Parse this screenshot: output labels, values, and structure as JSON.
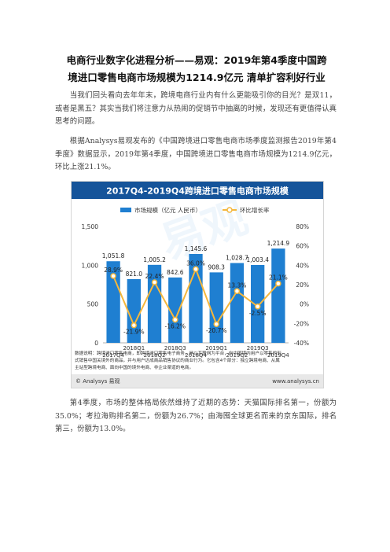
{
  "article": {
    "title_line1": "电商行业数字化进程分析——易观：2019年第4季度中国跨",
    "title_line2": "境进口零售电商市场规模为1214.9亿元 清单扩容利好行业",
    "paragraph1": "当我们回头看向去年年末，跨境电商行业内有什么更能吸引你的目光？是双11，或者是黑五？其实当我们将注意力从热闹的促销节中抽离的时候，发现还有更值得认真思考的问题。",
    "paragraph2": "根据Analysys易观发布的《中国跨境进口零售电商市场季度监测报告2019年第4季度》数据显示，2019年第4季度，中国跨境进口零售电商市场规模为1214.9亿元，环比上涨21.1%。",
    "paragraph3": "第4季度，市场的整体格局依然维持了近期的态势：天猫国际排名第一，份额为35.0%；考拉海购排名第二，份额为26.7%；由海囤全球更名而来的京东国际，排名第三，份额为13.0%。"
  },
  "figure": {
    "watermark": "易观",
    "note_line1": "数据说明：跨境进口零售电商，即跨境进口零售电子商务，是以互联网为平台，向中国境内用户以零售的形",
    "note_line2": "式销售中国关境外的商品，并与用户达成商品销售协议的商业行为。它包含4个部分：独立跨境电商、从属",
    "note_line3": "主站型跨境电商、面向中国的境外电商、非企业渠道的电商。",
    "source": "© Analysys 易观",
    "website": "www.analysys.cn",
    "colors": {
      "bar": "#1f7fd1",
      "line": "#f5b73c",
      "banner": "#15549a",
      "source_bg": "#e8e8e8"
    }
  },
  "chart_data": {
    "type": "bar",
    "title": "2017Q4-2019Q4跨境进口零售电商市场规模",
    "categories": [
      "2017Q4",
      "2018Q1",
      "2018Q2",
      "2018Q3",
      "2018Q4",
      "2019Q1",
      "2019Q2",
      "2019Q3",
      "2019Q4"
    ],
    "x_tick_labels_top": [
      "2018Q1",
      "2018Q3",
      "2019Q1",
      "2019Q3"
    ],
    "x_tick_labels_bottom": [
      "2017Q4",
      "2018Q2",
      "2018Q4",
      "2019Q2",
      "2019Q4"
    ],
    "series": [
      {
        "name": "市场规模（亿元 人民币）",
        "type": "bar",
        "axis": "left",
        "values": [
          1051.8,
          821.0,
          1005.2,
          842.6,
          1145.6,
          908.3,
          1028.7,
          1003.4,
          1214.9
        ],
        "labels": [
          "1,051.8",
          "821.0",
          "1,005.2",
          "842.6",
          "1,145.6",
          "908.3",
          "1,028.7",
          "1,003.4",
          "1,214.9"
        ]
      },
      {
        "name": "环比增长率",
        "type": "line",
        "axis": "right",
        "values": [
          28.9,
          -21.9,
          22.4,
          -16.2,
          36.0,
          -20.7,
          13.3,
          -2.5,
          21.1
        ],
        "labels": [
          "28.9%",
          "-21.9%",
          "22.4%",
          "-16.2%",
          "36.0%",
          "-20.7%",
          "13.3%",
          "-2.5%",
          "21.1%"
        ]
      }
    ],
    "y_left": {
      "ylim": [
        0,
        1500
      ],
      "ticks": [
        "0",
        "500",
        "1,000",
        "1,500"
      ]
    },
    "y_right": {
      "ylim": [
        -40,
        80
      ],
      "ticks": [
        "-40%",
        "-20%",
        "0%",
        "20%",
        "40%",
        "60%",
        "80%"
      ]
    },
    "legend_position": "top",
    "grid": false
  }
}
